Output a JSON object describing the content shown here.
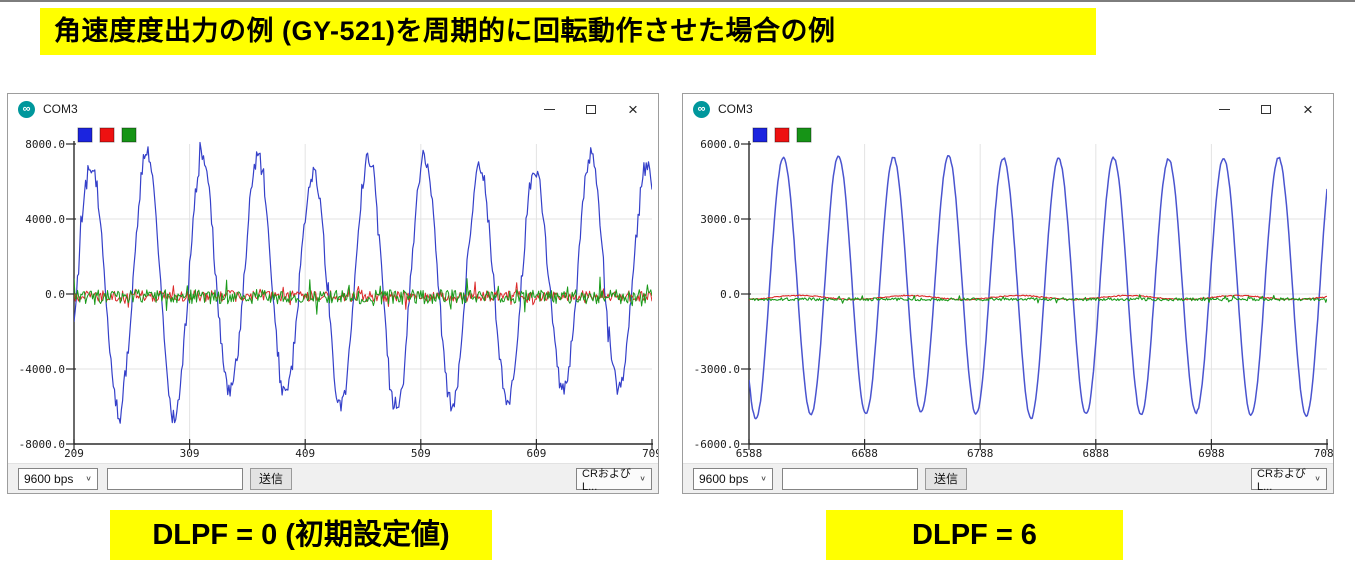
{
  "banner": {
    "text": "角速度度出力の例 (GY-521)を周期的に回転動作させた場合の例"
  },
  "colors": {
    "banner_bg": "#ffff00",
    "arduino_teal": "#00979c",
    "series_blue": "#3540c9",
    "series_blue_smooth": "#4a54cf",
    "series_red": "#dc2a2a",
    "series_green": "#1a9a1a",
    "legend_blue": "#1b24df",
    "legend_red": "#ee1111",
    "legend_green": "#169416",
    "statusbar_bg": "#f0f0f0"
  },
  "icons": {
    "arduino_infinity": "∞",
    "chevron_down": "∨",
    "close": "×"
  },
  "windows": [
    {
      "title": "COM3",
      "statusbar": {
        "baud": "9600 bps",
        "message_value": "",
        "send_label": "送信",
        "line_ending": "CRおよびL..."
      },
      "caption": "DLPF = 0 (初期設定値)"
    },
    {
      "title": "COM3",
      "statusbar": {
        "baud": "9600 bps",
        "message_value": "",
        "send_label": "送信",
        "line_ending": "CRおよびL..."
      },
      "caption": "DLPF = 6"
    }
  ],
  "chart_data": [
    {
      "type": "line",
      "title": "",
      "xlabel": "",
      "ylabel": "",
      "xlim": [
        209,
        709
      ],
      "ylim": [
        -8000,
        8000
      ],
      "x_ticks": [
        209,
        309,
        409,
        509,
        609,
        709
      ],
      "y_ticks": [
        8000,
        4000,
        0,
        -4000,
        -8000
      ],
      "y_tick_labels": [
        "8000.0",
        "4000.0",
        "0.0",
        "-4000.0",
        "-8000.0"
      ],
      "grid": true,
      "legend_position": "top-left",
      "legend_colors": [
        "#1b24df",
        "#ee1111",
        "#169416"
      ],
      "samples_per_trace": 500,
      "series": [
        {
          "name": "gyro-axis-1-blue",
          "color": "#3540c9",
          "width": 1.2,
          "kind": "noisy-sine",
          "amplitude": 6300,
          "amp_jitter": 800,
          "offset": 600,
          "period": 48,
          "phase": -0.39,
          "noise": 480,
          "spike_p": 0.1,
          "spike_mult": 1.7,
          "seed": 7
        },
        {
          "name": "gyro-axis-2-red",
          "color": "#dc2a2a",
          "width": 1,
          "kind": "noise",
          "offset": -110,
          "noise": 290,
          "spike_p": 0.08,
          "spike_mult": 1.9,
          "seed": 11
        },
        {
          "name": "gyro-axis-3-green",
          "color": "#1a9a1a",
          "width": 1,
          "kind": "noise",
          "offset": -150,
          "noise": 380,
          "spike_p": 0.1,
          "spike_mult": 2.1,
          "seed": 23
        }
      ]
    },
    {
      "type": "line",
      "title": "",
      "xlabel": "",
      "ylabel": "",
      "xlim": [
        6588,
        7088
      ],
      "ylim": [
        -6000,
        6000
      ],
      "x_ticks": [
        6588,
        6688,
        6788,
        6888,
        6988,
        7088
      ],
      "y_ticks": [
        6000,
        3000,
        0,
        -3000,
        -6000
      ],
      "y_tick_labels": [
        "6000.0",
        "3000.0",
        "0.0",
        "-3000.0",
        "-6000.0"
      ],
      "grid": true,
      "legend_position": "top-left",
      "legend_colors": [
        "#1b24df",
        "#ee1111",
        "#169416"
      ],
      "samples_per_trace": 500,
      "series": [
        {
          "name": "gyro-axis-1-blue",
          "color": "#4a54cf",
          "width": 1.5,
          "kind": "noisy-sine",
          "amplitude": 5200,
          "amp_jitter": 140,
          "offset": 340,
          "period": 47.6,
          "phase": -2.36,
          "noise": 45,
          "seed": 3
        },
        {
          "name": "gyro-axis-2-red",
          "color": "#dc2a2a",
          "width": 1.1,
          "kind": "noise",
          "offset": -140,
          "noise": 22,
          "wobble_amp": 80,
          "wobble_period": 95,
          "seed": 5
        },
        {
          "name": "gyro-axis-3-green",
          "color": "#1a9a1a",
          "width": 1.1,
          "kind": "noise",
          "offset": -210,
          "noise": 60,
          "spike_p": 0.08,
          "spike_mult": 2.2,
          "seed": 9
        }
      ]
    }
  ]
}
